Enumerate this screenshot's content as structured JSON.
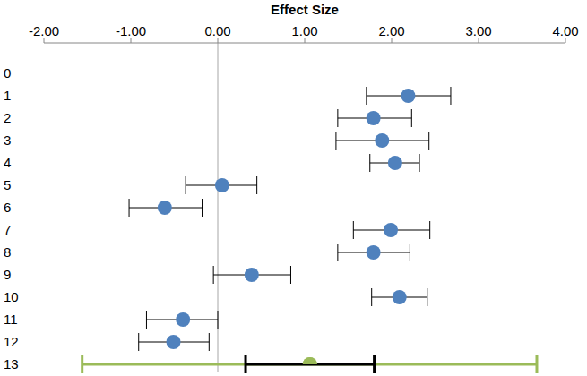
{
  "chart_data": {
    "type": "forest",
    "title": "Effect Size",
    "categories": [
      "0",
      "1",
      "2",
      "3",
      "4",
      "5",
      "6",
      "7",
      "8",
      "9",
      "10",
      "11",
      "12",
      "13"
    ],
    "values": [
      null,
      2.19,
      1.79,
      1.89,
      2.04,
      0.05,
      -0.61,
      1.99,
      1.79,
      0.39,
      2.09,
      -0.4,
      -0.51,
      null
    ],
    "error_low": [
      null,
      1.71,
      1.38,
      1.36,
      1.75,
      -0.37,
      -1.02,
      1.56,
      1.38,
      -0.05,
      1.77,
      -0.82,
      -0.91,
      null
    ],
    "error_high": [
      null,
      2.68,
      2.23,
      2.43,
      2.32,
      0.45,
      -0.18,
      2.44,
      2.21,
      0.84,
      2.41,
      0.0,
      -0.1,
      null
    ],
    "color": "#4f81bd",
    "summary": {
      "category": "13",
      "value": 1.06,
      "ci_low": 0.32,
      "ci_high": 1.8,
      "ci_color": "#000000",
      "prediction_low": -1.56,
      "prediction_high": 3.67,
      "color": "#9bbb59"
    },
    "reference_line": 0,
    "xlim": [
      -2,
      4
    ],
    "xticks": [
      {
        "value": -2,
        "label": "-2.00"
      },
      {
        "value": -1,
        "label": "-1.00"
      },
      {
        "value": 0,
        "label": "0.00"
      },
      {
        "value": 1,
        "label": "1.00"
      },
      {
        "value": 2,
        "label": "2.00"
      },
      {
        "value": 3,
        "label": "3.00"
      },
      {
        "value": 4,
        "label": "4.00"
      }
    ],
    "grid": false
  }
}
